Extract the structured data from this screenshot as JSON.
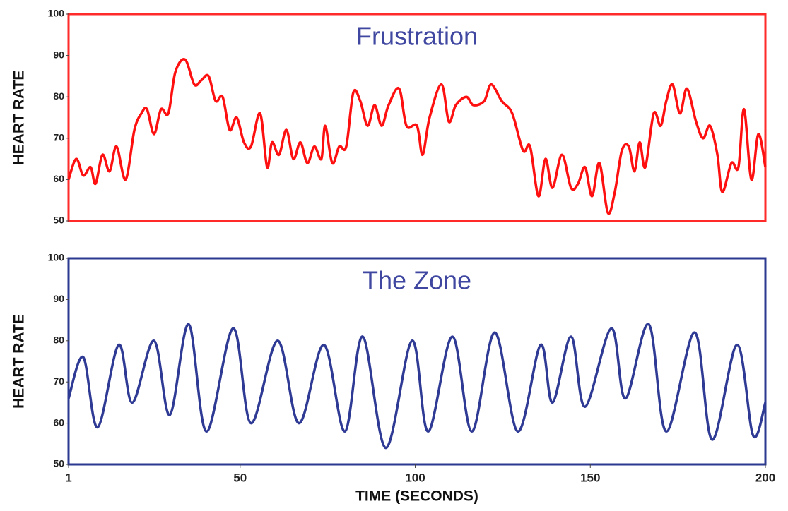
{
  "chart_data": [
    {
      "type": "line",
      "title": "Frustration",
      "ylabel": "HEART RATE",
      "xlim": [
        1,
        200
      ],
      "ylim": [
        50,
        100
      ],
      "yticks": [
        50,
        60,
        70,
        80,
        90,
        100
      ],
      "frame_color": "#ff2a2a",
      "x": [
        1,
        3.2,
        5.2,
        7.3,
        8.7,
        10.7,
        12.7,
        14.7,
        17.3,
        19.8,
        21.8,
        23.4,
        25.4,
        27.4,
        29.5,
        31.5,
        34.3,
        36.9,
        38.9,
        41.0,
        43.0,
        45.0,
        47.0,
        49.0,
        51.1,
        53.1,
        55.7,
        57.7,
        59.1,
        61.1,
        63.2,
        65.2,
        67.2,
        69.2,
        71.2,
        73.2,
        74.3,
        76.3,
        78.3,
        80.3,
        82.3,
        84.3,
        86.4,
        88.4,
        90.4,
        92.4,
        95.4,
        97.5,
        100.5,
        102.1,
        104.1,
        107.5,
        109.6,
        111.6,
        114.6,
        116.6,
        119.7,
        121.7,
        124.7,
        127.7,
        130.8,
        132.8,
        135.2,
        137.2,
        139.2,
        141.9,
        144.5,
        146.5,
        148.5,
        150.5,
        152.6,
        155.0,
        157.0,
        159.0,
        161.0,
        162.6,
        164.1,
        165.7,
        168.1,
        170.1,
        171.7,
        173.5,
        175.6,
        177.6,
        180.2,
        182.2,
        184.2,
        186.3,
        187.7,
        190.3,
        192.3,
        193.9,
        196.0,
        198.0,
        200.0
      ],
      "series": [
        {
          "color": "#ff1010",
          "values": [
            60,
            65,
            61,
            63,
            59,
            66,
            62,
            68,
            60,
            72,
            76,
            77,
            71,
            77,
            76,
            86,
            89,
            83,
            84,
            85,
            79,
            80,
            72,
            75,
            69,
            68,
            76,
            63,
            69,
            66,
            72,
            65,
            69,
            64,
            68,
            65,
            73,
            64,
            68,
            68,
            81,
            79,
            73,
            78,
            73,
            78,
            82,
            73,
            73,
            66,
            75,
            83,
            74,
            78,
            80,
            78,
            79,
            83,
            79,
            76,
            67,
            68,
            56,
            65,
            58,
            66,
            58,
            59,
            63,
            56,
            64,
            52,
            57,
            67,
            68,
            62,
            69,
            63,
            76,
            73,
            79,
            83,
            76,
            82,
            74,
            70,
            73,
            66,
            57,
            64,
            63,
            77,
            60,
            71,
            63
          ]
        }
      ]
    },
    {
      "type": "line",
      "title": "The Zone",
      "ylabel": "HEART RATE",
      "xlabel": "TIME (SECONDS)",
      "xlim": [
        1,
        200
      ],
      "xticks": [
        1,
        50,
        100,
        150,
        200
      ],
      "ylim": [
        50,
        100
      ],
      "yticks": [
        50,
        60,
        70,
        80,
        90,
        100
      ],
      "frame_color": "#2b3990",
      "x": [
        1,
        5.2,
        9.3,
        15.3,
        19.2,
        25.4,
        29.9,
        35.3,
        40.4,
        48.0,
        53.1,
        60.7,
        66.8,
        73.9,
        79.9,
        85.0,
        91.6,
        99.1,
        103.7,
        110.6,
        116.2,
        122.7,
        129.3,
        135.8,
        139.2,
        144.5,
        148.5,
        156.0,
        160.0,
        166.7,
        171.7,
        179.8,
        184.8,
        191.9,
        196.5,
        200
      ],
      "series": [
        {
          "color": "#2e3a94",
          "values": [
            66,
            76,
            59,
            79,
            65,
            80,
            62,
            84,
            58,
            83,
            60,
            80,
            60,
            79,
            58,
            81,
            54,
            80,
            58,
            81,
            58,
            82,
            58,
            79,
            65,
            81,
            64,
            83,
            66,
            84,
            58,
            82,
            56,
            79,
            57,
            65
          ]
        }
      ]
    }
  ]
}
